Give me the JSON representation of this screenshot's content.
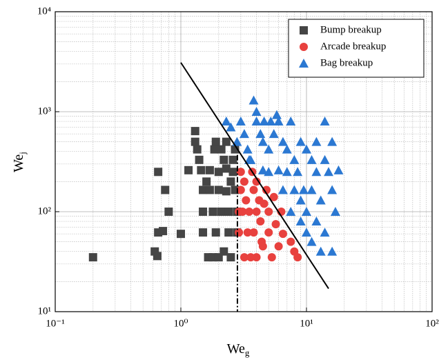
{
  "chart_data": {
    "type": "scatter",
    "x_label": "We",
    "x_label_subscript": "g",
    "y_label": "We",
    "y_label_subscript": "j",
    "log_x": true,
    "log_y": true,
    "grid": true,
    "minor_grid": true,
    "legend": "top-right",
    "xlim": [
      0.1,
      100
    ],
    "ylim": [
      10,
      10000
    ],
    "xticks": [
      {
        "value": 0.1,
        "label": "10⁻¹"
      },
      {
        "value": 1,
        "label": "10⁰"
      },
      {
        "value": 10,
        "label": "10¹"
      },
      {
        "value": 100,
        "label": "10²"
      }
    ],
    "yticks": [
      {
        "value": 10,
        "label": "10¹"
      },
      {
        "value": 100,
        "label": "10²"
      },
      {
        "value": 1000,
        "label": "10³"
      },
      {
        "value": 10000,
        "label": "10⁴"
      }
    ],
    "series": [
      {
        "name": "Bump breakup",
        "color": "#454545",
        "marker": "square",
        "x": [
          0.2,
          0.62,
          0.65,
          0.66,
          0.66,
          0.72,
          0.75,
          0.8,
          1.0,
          1.15,
          1.3,
          1.3,
          1.35,
          1.4,
          1.45,
          1.5,
          1.5,
          1.5,
          1.6,
          1.65,
          1.7,
          1.7,
          1.8,
          1.8,
          1.85,
          1.9,
          1.9,
          2.0,
          2.0,
          2.0,
          2.1,
          2.1,
          2.2,
          2.2,
          2.3,
          2.3,
          2.3,
          2.4,
          2.4,
          2.5,
          2.6,
          2.6,
          2.7,
          2.7,
          2.8,
          2.8,
          2.5
        ],
        "values": [
          35,
          40,
          36,
          62,
          250,
          64,
          165,
          100,
          60,
          260,
          640,
          500,
          420,
          330,
          260,
          165,
          100,
          62,
          200,
          35,
          260,
          165,
          35,
          100,
          420,
          500,
          62,
          250,
          165,
          35,
          420,
          100,
          330,
          40,
          500,
          270,
          160,
          100,
          62,
          35,
          330,
          250,
          165,
          420,
          100,
          62,
          200
        ]
      },
      {
        "name": "Arcade breakup",
        "color": "#e8413e",
        "marker": "circle",
        "x": [
          3.0,
          3.2,
          3.0,
          3.3,
          2.9,
          3.1,
          3.5,
          2.9,
          3.4,
          3.2,
          3.7,
          3.8,
          4.0,
          4.2,
          4.0,
          4.3,
          3.8,
          4.4,
          4.0,
          4.5,
          4.8,
          5.0,
          5.0,
          5.3,
          5.7,
          6.0,
          6.3,
          6.5,
          7.5,
          8.0,
          8.5,
          3.6,
          4.6,
          5.5
        ],
        "values": [
          250,
          200,
          165,
          130,
          100,
          100,
          100,
          62,
          62,
          35,
          250,
          165,
          200,
          130,
          100,
          80,
          62,
          50,
          35,
          45,
          165,
          100,
          62,
          35,
          75,
          45,
          100,
          60,
          50,
          40,
          35,
          35,
          120,
          140
        ]
      },
      {
        "name": "Bag breakup",
        "color": "#2b78d2",
        "marker": "triangle",
        "x": [
          2.3,
          2.5,
          2.8,
          3.0,
          3.2,
          3.4,
          3.6,
          3.8,
          4.0,
          4.0,
          4.3,
          4.5,
          4.6,
          5.0,
          5.2,
          5.5,
          5.8,
          6.0,
          6.5,
          7.0,
          7.5,
          8.0,
          8.5,
          9.0,
          9.5,
          10,
          11,
          12,
          13,
          14,
          15,
          16,
          17,
          18,
          3.5,
          4.5,
          5.0,
          6.0,
          7.0,
          8.0,
          9.0,
          10.0,
          11.0,
          12,
          13,
          14,
          16,
          6.5,
          7.5,
          9,
          11,
          14,
          16,
          10,
          12
        ],
        "values": [
          800,
          700,
          500,
          800,
          600,
          420,
          330,
          1300,
          1000,
          800,
          600,
          500,
          800,
          420,
          800,
          600,
          930,
          800,
          500,
          420,
          800,
          330,
          250,
          500,
          165,
          100,
          330,
          250,
          130,
          800,
          250,
          165,
          100,
          260,
          330,
          260,
          250,
          260,
          250,
          165,
          130,
          62,
          50,
          80,
          40,
          62,
          40,
          165,
          100,
          80,
          165,
          330,
          500,
          420,
          500
        ]
      }
    ],
    "lines": [
      {
        "x": [
          1,
          15
        ],
        "y": [
          3100,
          17
        ],
        "color": "#000000",
        "style": "solid"
      },
      {
        "x": [
          2.82,
          2.82
        ],
        "y": [
          370,
          10
        ],
        "color": "#000000",
        "style": "dashdot"
      }
    ]
  }
}
